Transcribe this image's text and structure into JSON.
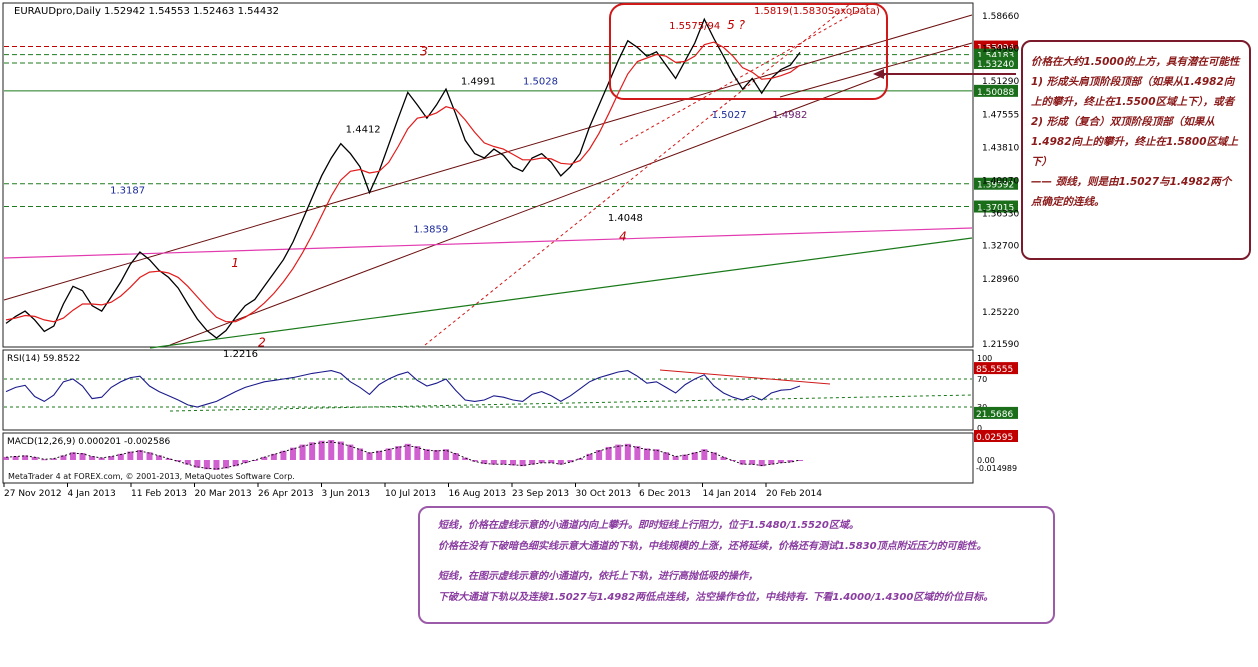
{
  "header": {
    "symbol": "EURAUDpro,Daily",
    "ohlc": "1.52942 1.54553 1.52463 1.54432"
  },
  "colors": {
    "price": "#000000",
    "ma": "#e21b1b",
    "channel": "#6b0f0f",
    "dashed_green": "#1e7a1e",
    "magenta": "#e23bb0",
    "green": "#1a7a1a",
    "box": "#d01818",
    "tag_red": "#c00000",
    "tag_green": "#1a6e1a",
    "rsi": "#1b1b8c",
    "macd_hist": "#c844c8"
  },
  "chart_data": {
    "type": "line",
    "title": "EURAUDpro,Daily",
    "price_axis": [
      "1.58660",
      "1.54960",
      "1.51290",
      "1.47555",
      "1.43810",
      "1.40070",
      "1.36330",
      "1.32700",
      "1.28960",
      "1.25220",
      "1.21590"
    ],
    "date_axis": [
      "27 Nov 2012",
      "4 Jan 2013",
      "11 Feb 2013",
      "20 Mar 2013",
      "26 Apr 2013",
      "3 Jun 2013",
      "10 Jul 2013",
      "16 Aug 2013",
      "23 Sep 2013",
      "30 Oct 2013",
      "6 Dec 2013",
      "14 Jan 2014",
      "20 Feb 2014"
    ],
    "price_tags": [
      {
        "label": "1.55094",
        "value": 1.55094,
        "color": "red"
      },
      {
        "label": "1.54183",
        "value": 1.54183,
        "color": "green"
      },
      {
        "label": "1.53240",
        "value": 1.5324,
        "color": "green"
      },
      {
        "label": "1.50088",
        "value": 1.50088,
        "color": "green"
      },
      {
        "label": "1.39592",
        "value": 1.39592,
        "color": "green"
      },
      {
        "label": "1.37015",
        "value": 1.37015,
        "color": "green"
      }
    ],
    "annotations": [
      {
        "text": "1.4991",
        "x": 0.342,
        "y": 1.508,
        "color": "black"
      },
      {
        "text": "1.5028",
        "x": 0.3887,
        "y": 1.508,
        "color": "blue"
      },
      {
        "text": "1.4412",
        "x": 0.2554,
        "y": 1.454,
        "color": "black"
      },
      {
        "text": "1.3187",
        "x": 0.0783,
        "y": 1.385,
        "color": "blue"
      },
      {
        "text": "1.3859",
        "x": 0.3062,
        "y": 1.341,
        "color": "blue"
      },
      {
        "text": "1.4048",
        "x": 0.4525,
        "y": 1.354,
        "color": "black"
      },
      {
        "text": "1.5027",
        "x": 0.5305,
        "y": 1.47,
        "color": "blue"
      },
      {
        "text": "1.4982",
        "x": 0.5762,
        "y": 1.47,
        "color": "purple"
      },
      {
        "text": "1.5575/94",
        "x": 0.4986,
        "y": 1.571,
        "color": "red"
      },
      {
        "text": "1.5819(1.5830SaxoData)",
        "x": 0.5624,
        "y": 1.588,
        "color": "red"
      },
      {
        "text": "1.2216",
        "x": 0.1632,
        "y": 1.2,
        "color": "black"
      },
      {
        "text": "3",
        "x": 0.3115,
        "y": 1.541,
        "color": "red"
      },
      {
        "text": "1",
        "x": 0.1695,
        "y": 1.302,
        "color": "red"
      },
      {
        "text": "2",
        "x": 0.1896,
        "y": 1.212,
        "color": "red"
      },
      {
        "text": "4",
        "x": 0.461,
        "y": 1.332,
        "color": "red"
      },
      {
        "text": "5 ?",
        "x": 0.5422,
        "y": 1.571,
        "color": "red"
      }
    ],
    "series": [
      {
        "name": "Close",
        "values": [
          1.238,
          1.246,
          1.252,
          1.242,
          1.229,
          1.235,
          1.26,
          1.28,
          1.275,
          1.258,
          1.252,
          1.268,
          1.285,
          1.305,
          1.3187,
          1.31,
          1.298,
          1.29,
          1.278,
          1.26,
          1.243,
          1.23,
          1.2216,
          1.23,
          1.245,
          1.258,
          1.265,
          1.28,
          1.295,
          1.31,
          1.33,
          1.355,
          1.38,
          1.405,
          1.425,
          1.4412,
          1.43,
          1.415,
          1.3859,
          1.41,
          1.44,
          1.47,
          1.4991,
          1.485,
          1.47,
          1.485,
          1.5028,
          1.475,
          1.445,
          1.43,
          1.425,
          1.435,
          1.428,
          1.415,
          1.41,
          1.425,
          1.43,
          1.42,
          1.4048,
          1.415,
          1.43,
          1.46,
          1.485,
          1.51,
          1.535,
          1.5575,
          1.55,
          1.54,
          1.545,
          1.53,
          1.515,
          1.535,
          1.555,
          1.5819,
          1.56,
          1.54,
          1.52,
          1.5027,
          1.515,
          1.4982,
          1.515,
          1.525,
          1.53,
          1.5443
        ]
      },
      {
        "name": "MA",
        "values": [
          1.242,
          1.244,
          1.247,
          1.246,
          1.242,
          1.24,
          1.244,
          1.253,
          1.26,
          1.26,
          1.259,
          1.262,
          1.269,
          1.279,
          1.29,
          1.296,
          1.297,
          1.295,
          1.29,
          1.28,
          1.268,
          1.256,
          1.245,
          1.24,
          1.24,
          1.245,
          1.252,
          1.261,
          1.272,
          1.285,
          1.3,
          1.318,
          1.338,
          1.36,
          1.382,
          1.4,
          1.41,
          1.412,
          1.408,
          1.41,
          1.42,
          1.438,
          1.458,
          1.47,
          1.472,
          1.476,
          1.483,
          1.48,
          1.468,
          1.454,
          1.442,
          1.438,
          1.435,
          1.429,
          1.423,
          1.423,
          1.425,
          1.424,
          1.419,
          1.418,
          1.422,
          1.435,
          1.453,
          1.475,
          1.498,
          1.52,
          1.534,
          1.538,
          1.542,
          1.54,
          1.533,
          1.534,
          1.54,
          1.553,
          1.556,
          1.55,
          1.54,
          1.527,
          1.522,
          1.514,
          1.515,
          1.518,
          1.522,
          1.53
        ]
      }
    ],
    "rsi": {
      "label": "RSI(14) 59.8522",
      "ticks": [
        "100",
        "70",
        "30",
        "0"
      ],
      "tags": [
        "85.5555",
        "21.5686"
      ],
      "values": [
        52,
        58,
        61,
        45,
        38,
        47,
        66,
        70,
        60,
        42,
        44,
        58,
        66,
        72,
        74,
        60,
        52,
        46,
        40,
        33,
        30,
        34,
        38,
        45,
        52,
        58,
        62,
        66,
        68,
        70,
        72,
        75,
        78,
        80,
        82,
        78,
        66,
        58,
        48,
        62,
        70,
        76,
        80,
        68,
        60,
        64,
        70,
        54,
        40,
        38,
        40,
        46,
        44,
        40,
        38,
        48,
        52,
        46,
        38,
        46,
        56,
        66,
        72,
        76,
        80,
        82,
        74,
        64,
        66,
        58,
        50,
        62,
        70,
        76,
        60,
        50,
        44,
        40,
        46,
        40,
        50,
        54,
        55,
        60
      ]
    },
    "macd": {
      "label": "MACD(12,26,9) 0.000201 -0.002586",
      "ticks": [
        "0.00"
      ],
      "tags": [
        "0.02595",
        "-0.014989"
      ],
      "values": [
        0.004,
        0.005,
        0.006,
        0.004,
        0.001,
        0.002,
        0.006,
        0.01,
        0.009,
        0.005,
        0.003,
        0.005,
        0.008,
        0.011,
        0.013,
        0.01,
        0.006,
        0.002,
        -0.002,
        -0.006,
        -0.01,
        -0.012,
        -0.013,
        -0.011,
        -0.008,
        -0.004,
        0.0,
        0.004,
        0.008,
        0.012,
        0.016,
        0.02,
        0.023,
        0.025,
        0.026,
        0.024,
        0.02,
        0.015,
        0.01,
        0.012,
        0.015,
        0.018,
        0.021,
        0.018,
        0.014,
        0.013,
        0.014,
        0.009,
        0.003,
        -0.002,
        -0.005,
        -0.006,
        -0.006,
        -0.007,
        -0.008,
        -0.006,
        -0.004,
        -0.004,
        -0.006,
        -0.003,
        0.002,
        0.008,
        0.013,
        0.017,
        0.02,
        0.021,
        0.018,
        0.015,
        0.014,
        0.01,
        0.005,
        0.007,
        0.01,
        0.014,
        0.01,
        0.004,
        -0.001,
        -0.006,
        -0.006,
        -0.008,
        -0.006,
        -0.004,
        -0.003,
        0.0
      ]
    },
    "watermark": "MetaTrader 4 at FOREX.com, © 2001-2013, MetaQuotes Software Corp."
  },
  "notes": {
    "right": [
      "价格在大约1.5000的上方，具有潜在可能性",
      "1) 形成头肩顶阶段顶部（如果从1.4982向上的攀升，终止在1.5500区域上下），或者",
      "2) 形成（复合）双顶阶段顶部（如果从1.4982向上的攀升，终止在1.5800区域上下）",
      "—— 颈线，则是由1.5027与1.4982两个点确定的连线。"
    ],
    "bottom": [
      "短线，价格在虚线示意的小通道内向上攀升。即时短线上行阻力，位于1.5480/1.5520区域。",
      "价格在没有下破暗色细实线示意大通道的下轨，中线规模的上涨，还将延续，价格还有测试1.5830顶点附近压力的可能性。",
      "短线，在图示虚线示意的小通道内，依托上下轨，进行高抛低吸的操作，",
      "下破大通道下轨以及连接1.5027与1.4982两低点连线，沽空操作仓位，中线持有. 下看1.4000/1.4300区域的价位目标。"
    ]
  }
}
